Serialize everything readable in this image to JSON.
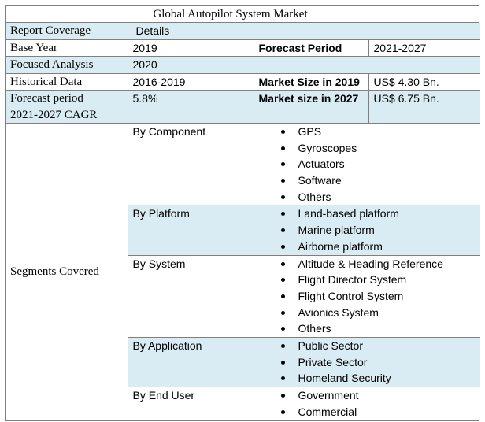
{
  "title": "Global Autopilot System Market",
  "header": {
    "col1": "Report Coverage",
    "col2": "Details"
  },
  "base_year": {
    "label": "Base Year",
    "value": "2019",
    "label2": "Forecast Period",
    "value2": "2021-2027"
  },
  "focused": {
    "label": "Focused Analysis",
    "value": "2020"
  },
  "historical": {
    "label": "Historical Data",
    "value": "2016-2019",
    "label2": "Market Size in 2019",
    "value2": "US$ 4.30 Bn."
  },
  "cagr": {
    "label_line1": "Forecast period",
    "label_line2": "2021-2027 CAGR",
    "value": "5.8%",
    "label2": "Market size in 2027",
    "value2": "US$ 6.75 Bn."
  },
  "segments": {
    "label": "Segments Covered",
    "groups": [
      {
        "name": "By Component",
        "items": [
          "GPS",
          "Gyroscopes",
          "Actuators",
          "Software",
          "Others"
        ]
      },
      {
        "name": "By Platform",
        "items": [
          "Land-based platform",
          "Marine platform",
          "Airborne platform"
        ]
      },
      {
        "name": "By System",
        "items": [
          "Altitude & Heading Reference",
          "Flight Director System",
          "Flight Control System",
          "Avionics System",
          "Others"
        ]
      },
      {
        "name": "By Application",
        "items": [
          "Public Sector",
          "Private Sector",
          "Homeland Security"
        ]
      },
      {
        "name": "By End User",
        "items": [
          "Government",
          "Commercial"
        ]
      }
    ]
  },
  "colors": {
    "highlight_row": "#d9ecf3",
    "border": "#7f7f7f"
  }
}
